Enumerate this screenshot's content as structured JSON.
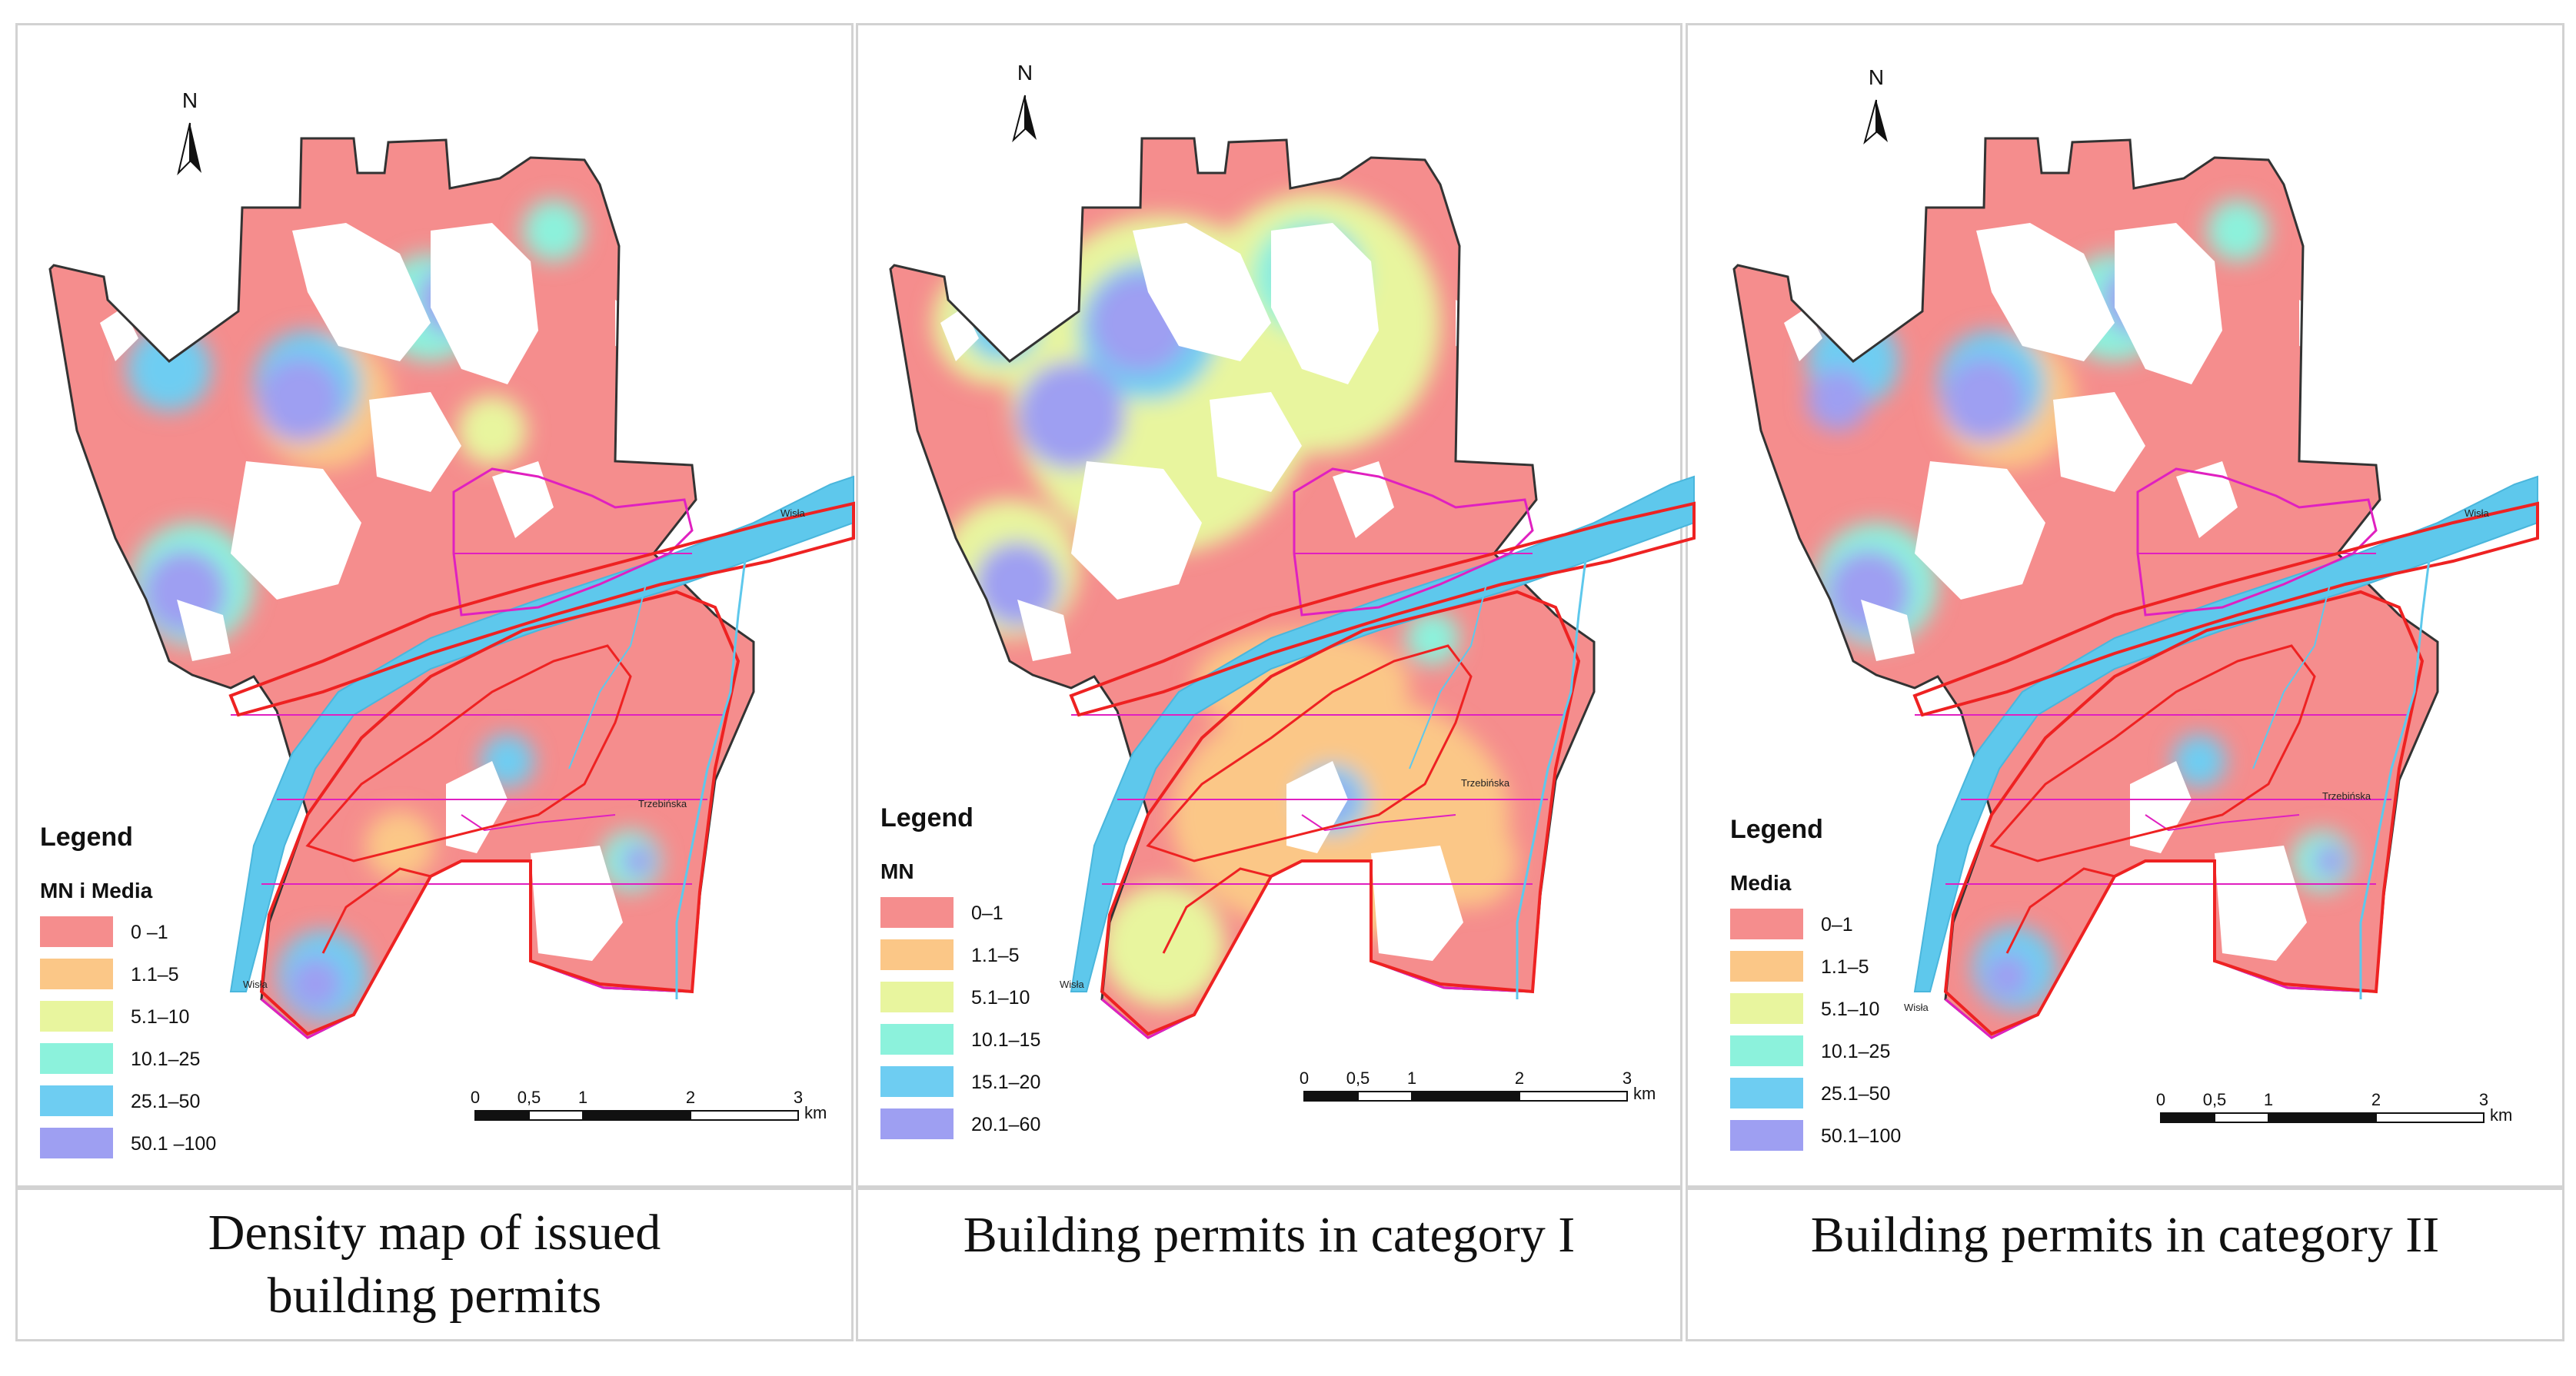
{
  "panels": [
    {
      "caption": "Density map of issued\nbuilding permits",
      "legend_title": "Legend",
      "legend_field": "MN i Media",
      "classes": [
        "0 –1",
        "1.1–5",
        "5.1–10",
        "10.1–25",
        "25.1–50",
        "50.1 –100"
      ]
    },
    {
      "caption": "Building permits in category I",
      "legend_title": "Legend",
      "legend_field": "MN",
      "classes": [
        "0–1",
        "1.1–5",
        "5.1–10",
        "10.1–15",
        "15.1–20",
        "20.1–60"
      ]
    },
    {
      "caption": "Building permits in category II",
      "legend_title": "Legend",
      "legend_field": "Media",
      "classes": [
        "0–1",
        "1.1–5",
        "5.1–10",
        "10.1–25",
        "25.1–50",
        "50.1–100"
      ]
    }
  ],
  "class_colors": [
    "#f58d8d",
    "#fbc787",
    "#e8f59e",
    "#8cf2dc",
    "#6ecdf2",
    "#9e9ff2"
  ],
  "north_label": "N",
  "scale": {
    "ticks": [
      "0",
      "0,5",
      "1",
      "2",
      "3"
    ],
    "unit": "km"
  },
  "places": {
    "river": "Wisła",
    "river_south": "Wisła",
    "town": "Trzebińska"
  },
  "colors": {
    "river": "#5ec8ec",
    "boundary": "#ee2222",
    "district": "#e020c0",
    "outline": "#333333"
  }
}
